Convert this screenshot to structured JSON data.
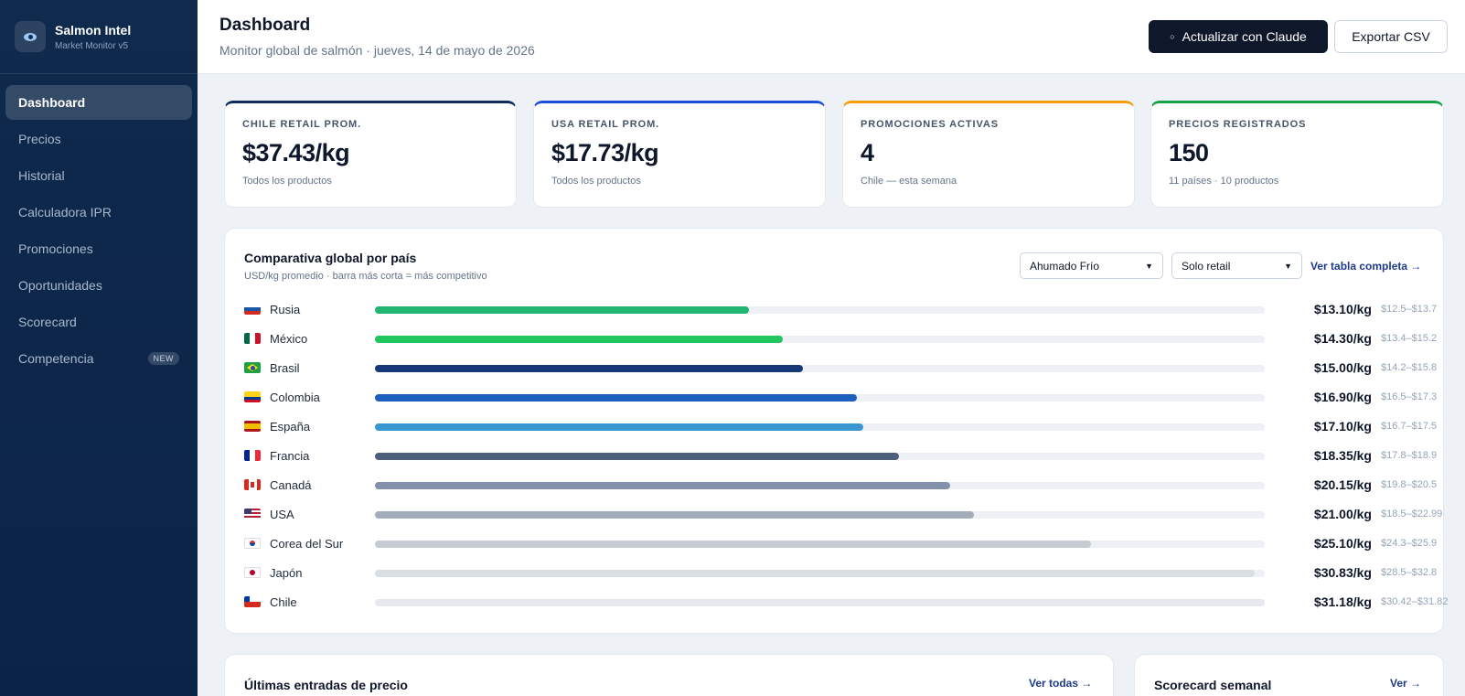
{
  "brand": {
    "title": "Salmon Intel",
    "subtitle": "Market Monitor v5"
  },
  "sidebar": {
    "items": [
      {
        "label": "Dashboard",
        "active": true
      },
      {
        "label": "Precios"
      },
      {
        "label": "Historial"
      },
      {
        "label": "Calculadora IPR"
      },
      {
        "label": "Promociones"
      },
      {
        "label": "Oportunidades"
      },
      {
        "label": "Scorecard"
      },
      {
        "label": "Competencia",
        "badge": "NEW"
      }
    ]
  },
  "header": {
    "title": "Dashboard",
    "subtitle": "Monitor global de salmón · jueves, 14 de mayo de 2026",
    "primary_button": "Actualizar con Claude",
    "secondary_button": "Exportar CSV"
  },
  "kpis": [
    {
      "label": "CHILE RETAIL PROM.",
      "value": "$37.43/kg",
      "note": "Todos los productos",
      "accent": "#0f2a5c"
    },
    {
      "label": "USA RETAIL PROM.",
      "value": "$17.73/kg",
      "note": "Todos los productos",
      "accent": "#1d4ed8"
    },
    {
      "label": "PROMOCIONES ACTIVAS",
      "value": "4",
      "note": "Chile — esta semana",
      "accent": "#f59e0b"
    },
    {
      "label": "PRECIOS REGISTRADOS",
      "value": "150",
      "note": "11 países · 10 productos",
      "accent": "#16a34a"
    }
  ],
  "comparison": {
    "title": "Comparativa global por país",
    "subtitle": "USD/kg promedio · barra más corta = más competitivo",
    "product_select": "Ahumado Frío",
    "channel_select": "Solo retail",
    "link": "Ver tabla completa →",
    "scale_max": 31.18,
    "rows": [
      {
        "country": "Rusia",
        "flag": "ru",
        "value": 13.1,
        "price": "$13.10/kg",
        "range": "$12.5–$13.7",
        "color": "#22b573"
      },
      {
        "country": "México",
        "flag": "mx",
        "value": 14.3,
        "price": "$14.30/kg",
        "range": "$13.4–$15.2",
        "color": "#22c55e"
      },
      {
        "country": "Brasil",
        "flag": "br",
        "value": 15.0,
        "price": "$15.00/kg",
        "range": "$14.2–$15.8",
        "color": "#163a78"
      },
      {
        "country": "Colombia",
        "flag": "co",
        "value": 16.9,
        "price": "$16.90/kg",
        "range": "$16.5–$17.3",
        "color": "#1d5fbf"
      },
      {
        "country": "España",
        "flag": "es",
        "value": 17.1,
        "price": "$17.10/kg",
        "range": "$16.7–$17.5",
        "color": "#3a96d1"
      },
      {
        "country": "Francia",
        "flag": "fr",
        "value": 18.35,
        "price": "$18.35/kg",
        "range": "$17.8–$18.9",
        "color": "#4c5f7c"
      },
      {
        "country": "Canadá",
        "flag": "ca",
        "value": 20.15,
        "price": "$20.15/kg",
        "range": "$19.8–$20.5",
        "color": "#8391aa"
      },
      {
        "country": "USA",
        "flag": "us",
        "value": 21.0,
        "price": "$21.00/kg",
        "range": "$18.5–$22.99",
        "color": "#a3adba"
      },
      {
        "country": "Corea del Sur",
        "flag": "kr",
        "value": 25.1,
        "price": "$25.10/kg",
        "range": "$24.3–$25.9",
        "color": "#c4cbd3"
      },
      {
        "country": "Japón",
        "flag": "jp",
        "value": 30.83,
        "price": "$30.83/kg",
        "range": "$28.5–$32.8",
        "color": "#d9dee5"
      },
      {
        "country": "Chile",
        "flag": "cl",
        "value": 31.18,
        "price": "$31.18/kg",
        "range": "$30.42–$31.82",
        "color": "#e6eaef"
      }
    ]
  },
  "bottom": {
    "latest_title": "Últimas entradas de precio",
    "latest_link": "Ver todas →",
    "scorecard_title": "Scorecard semanal",
    "scorecard_link": "Ver →"
  }
}
